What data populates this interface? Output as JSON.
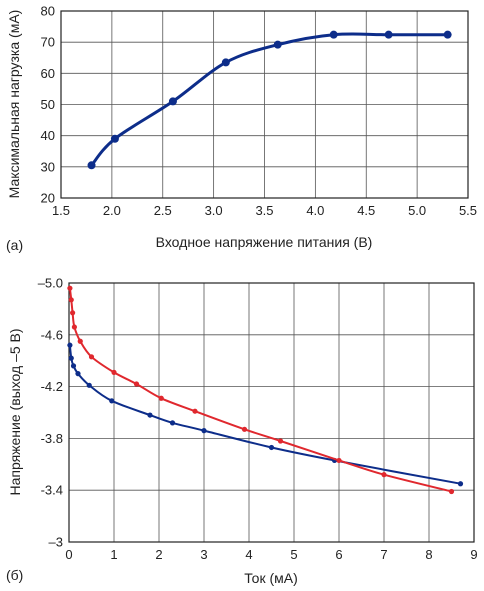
{
  "chart_data": [
    {
      "type": "line",
      "panel_label": "(a)",
      "xlabel": "Входное напряжение питания (В)",
      "ylabel": "Максимальная нагрузка (мА)",
      "xlim": [
        1.5,
        5.5
      ],
      "ylim": [
        20,
        80
      ],
      "xticks": [
        1.5,
        2.0,
        2.5,
        3.0,
        3.5,
        4.0,
        4.5,
        5.0,
        5.5
      ],
      "xtick_labels": [
        "1.5",
        "2.0",
        "2.5",
        "3.0",
        "3.5",
        "4.0",
        "4.5",
        "5.0",
        "5.5"
      ],
      "yticks": [
        20,
        30,
        40,
        50,
        60,
        70,
        80
      ],
      "ytick_labels": [
        "20",
        "30",
        "40",
        "50",
        "60",
        "70",
        "80"
      ],
      "grid": true,
      "series": [
        {
          "color": "#0d2d8a",
          "x": [
            1.8,
            2.03,
            2.6,
            3.12,
            3.63,
            4.18,
            4.72,
            5.3
          ],
          "y": [
            30.5,
            39,
            51,
            63.5,
            69.2,
            72.4,
            72.4,
            72.4
          ]
        }
      ]
    },
    {
      "type": "line",
      "panel_label": "(б)",
      "xlabel": "Ток (мА)",
      "ylabel": "Напряжение (выход –5 В)",
      "xlim": [
        0,
        9
      ],
      "ylim": [
        -3,
        -5
      ],
      "y_inverted": true,
      "xticks": [
        0,
        1,
        2,
        3,
        4,
        5,
        6,
        7,
        8,
        9
      ],
      "xtick_labels": [
        "0",
        "1",
        "2",
        "3",
        "4",
        "5",
        "6",
        "7",
        "8",
        "9"
      ],
      "yticks": [
        -5.0,
        -4.6,
        -4.2,
        -3.8,
        -3.4,
        -3
      ],
      "ytick_labels": [
        "–5.0",
        "-4.6",
        "-4.2",
        "-3.8",
        "-3.4",
        "–3"
      ],
      "grid": true,
      "series": [
        {
          "color": "#0d2d8a",
          "x": [
            0.02,
            0.05,
            0.1,
            0.2,
            0.45,
            0.95,
            1.8,
            2.3,
            3.0,
            4.5,
            5.9,
            8.7
          ],
          "y": [
            -4.52,
            -4.42,
            -4.36,
            -4.3,
            -4.21,
            -4.09,
            -3.98,
            -3.92,
            -3.86,
            -3.73,
            -3.63,
            -3.45
          ]
        },
        {
          "color": "#e0282e",
          "x": [
            0.02,
            0.05,
            0.08,
            0.12,
            0.25,
            0.5,
            1.0,
            1.5,
            2.05,
            2.8,
            3.9,
            4.7,
            6.0,
            7.0,
            8.5
          ],
          "y": [
            -4.96,
            -4.87,
            -4.77,
            -4.66,
            -4.55,
            -4.43,
            -4.31,
            -4.22,
            -4.11,
            -4.01,
            -3.87,
            -3.78,
            -3.63,
            -3.52,
            -3.39
          ]
        }
      ]
    }
  ]
}
